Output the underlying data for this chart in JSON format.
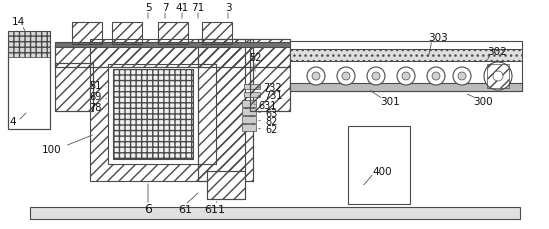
{
  "bg_color": "#ffffff",
  "line_color": "#4a4a4a",
  "figsize": [
    5.49,
    2.3
  ],
  "dpi": 100
}
